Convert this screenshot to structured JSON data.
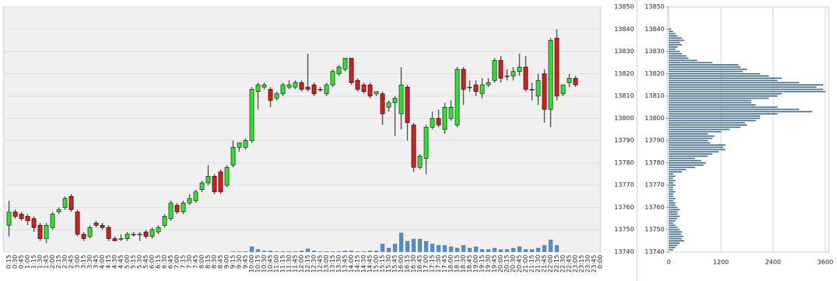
{
  "chart_data": [
    {
      "type": "candlestick",
      "categories": [
        "0:15",
        "0:30",
        "0:45",
        "1:00",
        "1:15",
        "1:30",
        "1:45",
        "2:00",
        "2:15",
        "2:30",
        "2:45",
        "3:00",
        "3:15",
        "3:30",
        "3:45",
        "4:00",
        "4:15",
        "4:30",
        "4:45",
        "5:00",
        "5:15",
        "5:30",
        "5:45",
        "6:00",
        "6:15",
        "6:30",
        "6:45",
        "7:00",
        "7:15",
        "7:30",
        "7:45",
        "8:00",
        "8:15",
        "8:30",
        "8:45",
        "9:00",
        "9:15",
        "9:30",
        "9:45",
        "10:00",
        "10:15",
        "10:30",
        "10:45",
        "11:00",
        "11:15",
        "11:30",
        "11:45",
        "12:00",
        "12:15",
        "12:30",
        "12:45",
        "13:00",
        "13:15",
        "13:30",
        "13:45",
        "14:00",
        "14:15",
        "14:30",
        "14:45",
        "15:00",
        "15:15",
        "15:30",
        "15:45",
        "16:00",
        "16:15",
        "16:30",
        "16:45",
        "17:00",
        "17:15",
        "17:30",
        "17:45",
        "18:00",
        "18:15",
        "18:30",
        "18:45",
        "19:00",
        "19:15",
        "19:30",
        "19:45",
        "20:00",
        "20:15",
        "20:30",
        "20:45",
        "21:00",
        "21:15",
        "21:30",
        "21:45",
        "22:00",
        "22:15",
        "22:30",
        "22:45",
        "23:00",
        "23:15",
        "23:30",
        "23:45",
        "0:00"
      ],
      "open": [
        13752,
        13758,
        13757,
        13756,
        13755,
        13752,
        13746,
        13751,
        13758,
        13760,
        13765,
        13758,
        13748,
        13747,
        13753,
        13752,
        13751,
        13746,
        13746,
        13746,
        13748,
        13748,
        13749,
        13747,
        13749,
        13752,
        13755,
        13761,
        13758,
        13762,
        13763,
        13768,
        13771,
        13774,
        13776,
        13770,
        13779,
        13787,
        13787,
        13790,
        13812,
        13814,
        13813,
        13809,
        13811,
        13814,
        13814,
        13816,
        13814,
        13815,
        13813,
        13811,
        13815,
        13820,
        13822,
        13827,
        13817,
        13815,
        13815,
        13811,
        13811,
        13805,
        13807,
        13802,
        13814,
        13797,
        13778,
        13782,
        13796,
        13800,
        13795,
        13800,
        13797,
        13822,
        13814,
        13815,
        13811,
        13815,
        13817,
        13826,
        13819,
        13819,
        13821,
        13823,
        13813,
        13810,
        13820,
        13804,
        13836,
        13811,
        13816,
        13818,
        null,
        null,
        null,
        null
      ],
      "high": [
        13763,
        13759,
        13758,
        13757,
        13756,
        13753,
        13753,
        13758,
        13760,
        13765,
        13766,
        13759,
        13749,
        13752,
        13754,
        13753,
        13752,
        13747,
        13748,
        13749,
        13749,
        13749,
        13750,
        13751,
        13752,
        13757,
        13763,
        13762,
        13763,
        13766,
        13768,
        13772,
        13779,
        13775,
        13777,
        13779,
        13790,
        13789,
        13791,
        13814,
        13816,
        13816,
        13814,
        13812,
        13816,
        13817,
        13817,
        13817,
        13829,
        13816,
        13814,
        13816,
        13822,
        13824,
        13827,
        13827,
        13818,
        13816,
        13816,
        13812,
        13812,
        13808,
        13810,
        13823,
        13815,
        13798,
        13784,
        13797,
        13803,
        13804,
        13807,
        13808,
        13823,
        13823,
        13817,
        13817,
        13818,
        13818,
        13827,
        13828,
        13822,
        13823,
        13829,
        13828,
        13816,
        13820,
        13822,
        13836,
        13840,
        13815,
        13820,
        13819,
        null,
        null,
        null,
        null
      ],
      "low": [
        13747,
        13755,
        13754,
        13752,
        13749,
        13745,
        13744,
        13750,
        13757,
        13759,
        13758,
        13747,
        13745,
        13746,
        13751,
        13750,
        13745,
        13745,
        13745,
        13745,
        13747,
        13745,
        13746,
        13746,
        13748,
        13751,
        13754,
        13757,
        13757,
        13761,
        13762,
        13767,
        13770,
        13766,
        13766,
        13769,
        13778,
        13785,
        13786,
        13789,
        13804,
        13813,
        13805,
        13808,
        13810,
        13813,
        13813,
        13812,
        13812,
        13810,
        13812,
        13810,
        13814,
        13819,
        13821,
        13815,
        13812,
        13811,
        13809,
        13810,
        13797,
        13803,
        13792,
        13795,
        13790,
        13776,
        13777,
        13775,
        13795,
        13796,
        13793,
        13799,
        13796,
        13806,
        13812,
        13810,
        13809,
        13814,
        13816,
        13816,
        13817,
        13817,
        13819,
        13812,
        13808,
        13806,
        13798,
        13796,
        13808,
        13810,
        13814,
        13814,
        null,
        null,
        null,
        null
      ],
      "close": [
        13758,
        13756,
        13755,
        13754,
        13751,
        13746,
        13752,
        13757,
        13759,
        13764,
        13759,
        13748,
        13746,
        13751,
        13752,
        13751,
        13746,
        13745,
        13746,
        13748,
        13748,
        13748,
        13747,
        13750,
        13751,
        13756,
        13762,
        13758,
        13762,
        13764,
        13767,
        13771,
        13774,
        13767,
        13767,
        13778,
        13787,
        13789,
        13790,
        13813,
        13815,
        13815,
        13808,
        13811,
        13815,
        13815,
        13816,
        13813,
        13813,
        13811,
        13813,
        13815,
        13821,
        13823,
        13827,
        13816,
        13813,
        13812,
        13810,
        13812,
        13802,
        13807,
        13809,
        13815,
        13798,
        13778,
        13783,
        13796,
        13800,
        13797,
        13805,
        13805,
        13822,
        13813,
        13814,
        13812,
        13815,
        13816,
        13826,
        13818,
        13819,
        13821,
        13823,
        13813,
        13813,
        13817,
        13804,
        13835,
        13810,
        13815,
        13818,
        13815,
        null,
        null,
        null,
        null
      ],
      "volume": [
        0,
        0,
        0,
        0,
        0,
        0,
        0,
        0,
        0,
        0,
        0,
        0,
        0,
        0,
        0,
        0,
        0,
        0,
        0,
        0,
        0,
        0,
        0,
        0,
        0,
        0,
        0,
        0,
        0,
        0,
        0,
        0,
        0,
        0,
        0,
        0,
        1,
        1,
        1,
        8,
        4,
        2,
        2,
        1,
        1,
        1,
        1,
        2,
        5,
        2,
        1,
        1,
        1,
        1,
        2,
        2,
        1,
        1,
        2,
        2,
        12,
        6,
        12,
        28,
        16,
        19,
        19,
        16,
        12,
        10,
        10,
        8,
        6,
        10,
        6,
        8,
        4,
        4,
        6,
        4,
        4,
        6,
        8,
        4,
        4,
        6,
        10,
        18,
        10,
        0,
        0,
        0,
        null,
        null,
        null,
        null
      ],
      "up_color": "#33dd33",
      "down_color": "#cc2222",
      "volume_color": "#5b8bc4",
      "ylim": [
        13740,
        13850
      ],
      "yticks": [
        13740,
        13750,
        13760,
        13770,
        13780,
        13790,
        13800,
        13810,
        13820,
        13830,
        13840,
        13850
      ],
      "grid": true
    },
    {
      "type": "hbar",
      "categories": [
        13740,
        13741,
        13742,
        13743,
        13744,
        13745,
        13746,
        13747,
        13748,
        13749,
        13750,
        13751,
        13752,
        13753,
        13754,
        13755,
        13756,
        13757,
        13758,
        13759,
        13760,
        13761,
        13762,
        13763,
        13764,
        13765,
        13766,
        13767,
        13768,
        13769,
        13770,
        13771,
        13772,
        13773,
        13774,
        13775,
        13776,
        13777,
        13778,
        13779,
        13780,
        13781,
        13782,
        13783,
        13784,
        13785,
        13786,
        13787,
        13788,
        13789,
        13790,
        13791,
        13792,
        13793,
        13794,
        13795,
        13796,
        13797,
        13798,
        13799,
        13800,
        13801,
        13802,
        13803,
        13804,
        13805,
        13806,
        13807,
        13808,
        13809,
        13810,
        13811,
        13812,
        13813,
        13814,
        13815,
        13816,
        13817,
        13818,
        13819,
        13820,
        13821,
        13822,
        13823,
        13824,
        13825,
        13826,
        13827,
        13828,
        13829,
        13830,
        13831,
        13832,
        13833,
        13834,
        13835,
        13836,
        13837,
        13838,
        13839,
        13840
      ],
      "values": [
        0,
        100,
        150,
        200,
        250,
        350,
        300,
        330,
        280,
        300,
        250,
        200,
        150,
        100,
        150,
        200,
        250,
        200,
        200,
        250,
        200,
        150,
        150,
        100,
        150,
        100,
        100,
        150,
        100,
        100,
        150,
        100,
        150,
        100,
        150,
        100,
        300,
        400,
        600,
        800,
        850,
        750,
        600,
        900,
        1000,
        1150,
        1300,
        1250,
        1300,
        950,
        900,
        1000,
        1050,
        900,
        1200,
        1400,
        1650,
        1800,
        1750,
        2000,
        2100,
        2100,
        2500,
        3300,
        3000,
        2500,
        2000,
        1900,
        1900,
        2300,
        2500,
        2600,
        3600,
        3550,
        3400,
        3550,
        3000,
        2500,
        2600,
        2300,
        2100,
        1700,
        1800,
        1650,
        1600,
        1000,
        650,
        450,
        400,
        300,
        250,
        150,
        200,
        300,
        250,
        350,
        300,
        200,
        150,
        100,
        50
      ],
      "color": "#3f6a8a",
      "xlim": [
        0,
        3600
      ],
      "xticks": [
        0,
        1200,
        2400,
        3600
      ],
      "ylim": [
        13740,
        13850
      ],
      "yticks": [
        13740,
        13750,
        13760,
        13770,
        13780,
        13790,
        13800,
        13810,
        13820,
        13830,
        13840,
        13850
      ],
      "grid": true
    }
  ]
}
